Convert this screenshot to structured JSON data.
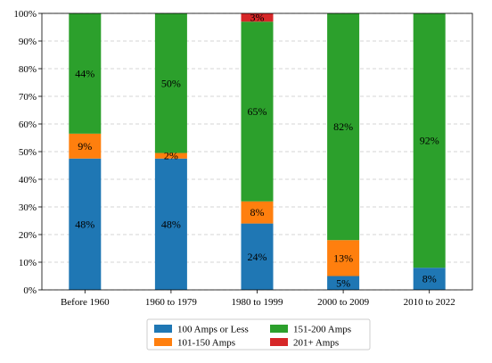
{
  "chart_data": {
    "type": "bar",
    "stacked": true,
    "categories": [
      "Before 1960",
      "1960 to 1979",
      "1980 to 1999",
      "2000 to 2009",
      "2010 to 2022"
    ],
    "series": [
      {
        "name": "100 Amps or Less",
        "color": "#1f77b4",
        "values": [
          47.5,
          47.5,
          24,
          5,
          8
        ],
        "labels": [
          "48%",
          "48%",
          "24%",
          "5%",
          "8%"
        ]
      },
      {
        "name": "101-150 Amps",
        "color": "#ff7f0e",
        "values": [
          9,
          2,
          8,
          13,
          0
        ],
        "labels": [
          "9%",
          "2%",
          "8%",
          "13%",
          ""
        ]
      },
      {
        "name": "151-200 Amps",
        "color": "#2ca02c",
        "values": [
          43.5,
          50.5,
          65,
          82,
          92
        ],
        "labels": [
          "44%",
          "50%",
          "65%",
          "82%",
          "92%"
        ]
      },
      {
        "name": "201+ Amps",
        "color": "#d62728",
        "values": [
          0,
          0,
          3,
          0,
          0
        ],
        "labels": [
          "",
          "",
          "3%",
          "",
          ""
        ]
      }
    ],
    "yticks": [
      "0%",
      "10%",
      "20%",
      "30%",
      "40%",
      "50%",
      "60%",
      "70%",
      "80%",
      "90%",
      "100%"
    ],
    "ylim": [
      0,
      100
    ],
    "grid": "horizontal dashed",
    "legend": "bottom-center"
  }
}
